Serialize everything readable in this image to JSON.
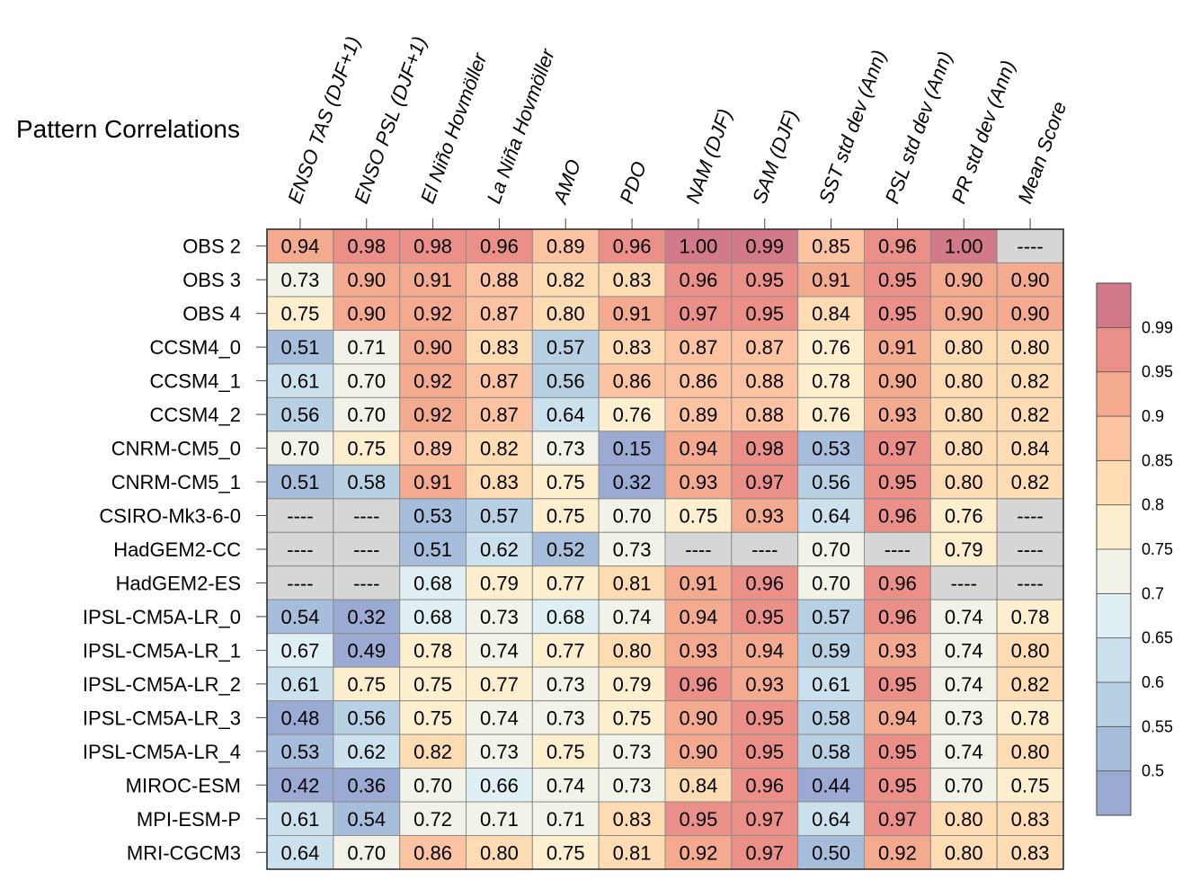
{
  "chart_data": {
    "type": "heatmap",
    "title": "Pattern Correlations",
    "columns": [
      "ENSO TAS (DJF+1)",
      "ENSO PSL (DJF+1)",
      "El Niño Hovmöller",
      "La Niña Hovmöller",
      "AMO",
      "PDO",
      "NAM (DJF)",
      "SAM (DJF)",
      "SST std dev (Ann)",
      "PSL std dev (Ann)",
      "PR std dev (Ann)",
      "Mean Score"
    ],
    "rows": [
      {
        "name": "OBS 2",
        "values": [
          "0.94",
          "0.98",
          "0.98",
          "0.96",
          "0.89",
          "0.96",
          "1.00",
          "0.99",
          "0.85",
          "0.96",
          "1.00",
          "----"
        ]
      },
      {
        "name": "OBS 3",
        "values": [
          "0.73",
          "0.90",
          "0.91",
          "0.88",
          "0.82",
          "0.83",
          "0.96",
          "0.95",
          "0.91",
          "0.95",
          "0.90",
          "0.90"
        ]
      },
      {
        "name": "OBS 4",
        "values": [
          "0.75",
          "0.90",
          "0.92",
          "0.87",
          "0.80",
          "0.91",
          "0.97",
          "0.95",
          "0.84",
          "0.95",
          "0.90",
          "0.90"
        ]
      },
      {
        "name": "CCSM4_0",
        "values": [
          "0.51",
          "0.71",
          "0.90",
          "0.83",
          "0.57",
          "0.83",
          "0.87",
          "0.87",
          "0.76",
          "0.91",
          "0.80",
          "0.80"
        ]
      },
      {
        "name": "CCSM4_1",
        "values": [
          "0.61",
          "0.70",
          "0.92",
          "0.87",
          "0.56",
          "0.86",
          "0.86",
          "0.88",
          "0.78",
          "0.90",
          "0.80",
          "0.82"
        ]
      },
      {
        "name": "CCSM4_2",
        "values": [
          "0.56",
          "0.70",
          "0.92",
          "0.87",
          "0.64",
          "0.76",
          "0.89",
          "0.88",
          "0.76",
          "0.93",
          "0.80",
          "0.82"
        ]
      },
      {
        "name": "CNRM-CM5_0",
        "values": [
          "0.70",
          "0.75",
          "0.89",
          "0.82",
          "0.73",
          "0.15",
          "0.94",
          "0.98",
          "0.53",
          "0.97",
          "0.80",
          "0.84"
        ]
      },
      {
        "name": "CNRM-CM5_1",
        "values": [
          "0.51",
          "0.58",
          "0.91",
          "0.83",
          "0.75",
          "0.32",
          "0.93",
          "0.97",
          "0.56",
          "0.95",
          "0.80",
          "0.82"
        ]
      },
      {
        "name": "CSIRO-Mk3-6-0",
        "values": [
          "----",
          "----",
          "0.53",
          "0.57",
          "0.75",
          "0.70",
          "0.75",
          "0.93",
          "0.64",
          "0.96",
          "0.76",
          "----"
        ]
      },
      {
        "name": "HadGEM2-CC",
        "values": [
          "----",
          "----",
          "0.51",
          "0.62",
          "0.52",
          "0.73",
          "----",
          "----",
          "0.70",
          "----",
          "0.79",
          "----"
        ]
      },
      {
        "name": "HadGEM2-ES",
        "values": [
          "----",
          "----",
          "0.68",
          "0.79",
          "0.77",
          "0.81",
          "0.91",
          "0.96",
          "0.70",
          "0.96",
          "----",
          "----"
        ]
      },
      {
        "name": "IPSL-CM5A-LR_0",
        "values": [
          "0.54",
          "0.32",
          "0.68",
          "0.73",
          "0.68",
          "0.74",
          "0.94",
          "0.95",
          "0.57",
          "0.96",
          "0.74",
          "0.78"
        ]
      },
      {
        "name": "IPSL-CM5A-LR_1",
        "values": [
          "0.67",
          "0.49",
          "0.78",
          "0.74",
          "0.77",
          "0.80",
          "0.93",
          "0.94",
          "0.59",
          "0.93",
          "0.74",
          "0.80"
        ]
      },
      {
        "name": "IPSL-CM5A-LR_2",
        "values": [
          "0.61",
          "0.75",
          "0.75",
          "0.77",
          "0.73",
          "0.79",
          "0.96",
          "0.93",
          "0.61",
          "0.95",
          "0.74",
          "0.82"
        ]
      },
      {
        "name": "IPSL-CM5A-LR_3",
        "values": [
          "0.48",
          "0.56",
          "0.75",
          "0.74",
          "0.73",
          "0.75",
          "0.90",
          "0.95",
          "0.58",
          "0.94",
          "0.73",
          "0.78"
        ]
      },
      {
        "name": "IPSL-CM5A-LR_4",
        "values": [
          "0.53",
          "0.62",
          "0.82",
          "0.73",
          "0.75",
          "0.73",
          "0.90",
          "0.95",
          "0.58",
          "0.95",
          "0.74",
          "0.80"
        ]
      },
      {
        "name": "MIROC-ESM",
        "values": [
          "0.42",
          "0.36",
          "0.70",
          "0.66",
          "0.74",
          "0.73",
          "0.84",
          "0.96",
          "0.44",
          "0.95",
          "0.70",
          "0.75"
        ]
      },
      {
        "name": "MPI-ESM-P",
        "values": [
          "0.61",
          "0.54",
          "0.72",
          "0.71",
          "0.71",
          "0.83",
          "0.95",
          "0.97",
          "0.64",
          "0.97",
          "0.80",
          "0.83"
        ]
      },
      {
        "name": "MRI-CGCM3",
        "values": [
          "0.64",
          "0.70",
          "0.86",
          "0.80",
          "0.75",
          "0.81",
          "0.92",
          "0.97",
          "0.50",
          "0.92",
          "0.80",
          "0.83"
        ]
      }
    ],
    "missing_marker": "----",
    "colorbar": {
      "levels": [
        0.5,
        0.55,
        0.6,
        0.65,
        0.7,
        0.75,
        0.8,
        0.85,
        0.9,
        0.95,
        0.99
      ],
      "labels": [
        "0.5",
        "0.55",
        "0.6",
        "0.65",
        "0.7",
        "0.75",
        "0.8",
        "0.85",
        "0.9",
        "0.95",
        "0.99"
      ],
      "colors": [
        "#9aaad3",
        "#a6bedb",
        "#b7d0e4",
        "#cbe1ed",
        "#e0eff4",
        "#f2f2e8",
        "#fdefcd",
        "#fddcb4",
        "#fbc3a1",
        "#f4aa8f",
        "#ea9089",
        "#d37a8a"
      ]
    },
    "missing_color": "#d6d6d6"
  }
}
